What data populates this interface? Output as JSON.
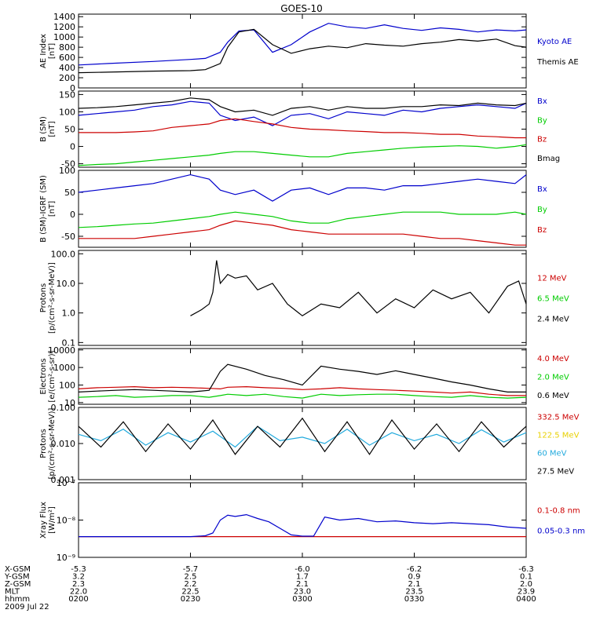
{
  "title": "GOES-10",
  "footer": {
    "row_labels": [
      "X-GSM",
      "Y-GSM",
      "Z-GSM",
      "MLT",
      "hhmm"
    ],
    "date": "2009 Jul 22",
    "ticks": [
      {
        "x_gsm": "-5.3",
        "y_gsm": "3.2",
        "z_gsm": "2.3",
        "mlt": "22.0",
        "hhmm": "0200"
      },
      {
        "x_gsm": "-5.7",
        "y_gsm": "2.5",
        "z_gsm": "2.2",
        "mlt": "22.5",
        "hhmm": "0230"
      },
      {
        "x_gsm": "-6.0",
        "y_gsm": "1.7",
        "z_gsm": "2.1",
        "mlt": "23.0",
        "hhmm": "0300"
      },
      {
        "x_gsm": "-6.2",
        "y_gsm": "0.9",
        "z_gsm": "2.1",
        "mlt": "23.5",
        "hhmm": "0330"
      },
      {
        "x_gsm": "-6.3",
        "y_gsm": "0.1",
        "z_gsm": "2.0",
        "mlt": "23.9",
        "hhmm": "0400"
      }
    ]
  },
  "colors": {
    "blue": "#0000cc",
    "green": "#00cc00",
    "red": "#cc0000",
    "black": "#000000",
    "cyan": "#22aadd",
    "yellow": "#e8d000"
  },
  "chart_data": [
    {
      "type": "line",
      "name": "ae",
      "ylabel": [
        "AE Index",
        "[nT]"
      ],
      "scale": "linear",
      "ylim": [
        0,
        1450
      ],
      "yticks": [
        0,
        200,
        400,
        600,
        800,
        1000,
        1200,
        1400
      ],
      "ytick_labels": [
        "0",
        "200",
        "400",
        "600",
        "800",
        "1000",
        "1200",
        "1400"
      ],
      "x": [
        0,
        8,
        20,
        30,
        34,
        38,
        40,
        43,
        47,
        52,
        57,
        62,
        67,
        72,
        77,
        82,
        87,
        92,
        97,
        102,
        107,
        112,
        117,
        120
      ],
      "series": [
        {
          "name": "Kyoto AE",
          "color": "#0000cc",
          "values": [
            450,
            480,
            520,
            560,
            580,
            700,
            900,
            1120,
            1140,
            700,
            850,
            1100,
            1270,
            1200,
            1170,
            1240,
            1170,
            1130,
            1180,
            1150,
            1100,
            1140,
            1120,
            1140
          ]
        },
        {
          "name": "Themis AE",
          "color": "#000000",
          "values": [
            300,
            310,
            330,
            340,
            360,
            480,
            800,
            1100,
            1150,
            850,
            680,
            770,
            820,
            790,
            870,
            840,
            820,
            870,
            900,
            950,
            920,
            960,
            830,
            800
          ]
        }
      ]
    },
    {
      "type": "line",
      "name": "b-sm",
      "ylabel": [
        "B (SM)",
        "[nT]"
      ],
      "scale": "linear",
      "ylim": [
        -60,
        160
      ],
      "yticks": [
        -50,
        0,
        50,
        100,
        150
      ],
      "ytick_labels": [
        "-50",
        "0",
        "50",
        "100",
        "150"
      ],
      "x": [
        0,
        5,
        10,
        15,
        20,
        25,
        30,
        35,
        38,
        42,
        47,
        52,
        57,
        62,
        67,
        72,
        77,
        82,
        87,
        92,
        97,
        102,
        107,
        112,
        117,
        120
      ],
      "series": [
        {
          "name": "Bx",
          "color": "#0000cc",
          "values": [
            90,
            95,
            100,
            105,
            115,
            120,
            130,
            125,
            90,
            75,
            85,
            60,
            90,
            95,
            80,
            100,
            95,
            90,
            105,
            100,
            110,
            115,
            120,
            115,
            110,
            125
          ]
        },
        {
          "name": "By",
          "color": "#00cc00",
          "values": [
            -55,
            -52,
            -50,
            -45,
            -40,
            -35,
            -30,
            -25,
            -20,
            -15,
            -15,
            -20,
            -25,
            -30,
            -30,
            -20,
            -15,
            -10,
            -5,
            -2,
            0,
            2,
            0,
            -5,
            0,
            5
          ]
        },
        {
          "name": "Bz",
          "color": "#cc0000",
          "values": [
            40,
            40,
            40,
            42,
            45,
            55,
            60,
            65,
            75,
            80,
            72,
            65,
            55,
            50,
            48,
            45,
            43,
            40,
            40,
            38,
            35,
            35,
            30,
            28,
            25,
            25
          ]
        },
        {
          "name": "Bmag",
          "color": "#000000",
          "values": [
            110,
            112,
            115,
            120,
            125,
            130,
            140,
            135,
            115,
            100,
            105,
            90,
            110,
            115,
            105,
            115,
            110,
            110,
            115,
            115,
            120,
            118,
            125,
            120,
            118,
            125
          ]
        }
      ]
    },
    {
      "type": "line",
      "name": "b-igrf",
      "ylabel": [
        "B (SM)-IGRF (SM)",
        "[nT]"
      ],
      "scale": "linear",
      "ylim": [
        -75,
        100
      ],
      "yticks": [
        -50,
        0,
        50,
        100
      ],
      "ytick_labels": [
        "-50",
        "0",
        "50",
        "100"
      ],
      "x": [
        0,
        5,
        10,
        15,
        20,
        25,
        30,
        35,
        38,
        42,
        47,
        52,
        57,
        62,
        67,
        72,
        77,
        82,
        87,
        92,
        97,
        102,
        107,
        112,
        117,
        120
      ],
      "series": [
        {
          "name": "Bx",
          "color": "#0000cc",
          "values": [
            50,
            55,
            60,
            65,
            70,
            80,
            90,
            80,
            55,
            45,
            55,
            30,
            55,
            60,
            45,
            60,
            60,
            55,
            65,
            65,
            70,
            75,
            80,
            75,
            70,
            90
          ]
        },
        {
          "name": "By",
          "color": "#00cc00",
          "values": [
            -30,
            -28,
            -25,
            -22,
            -20,
            -15,
            -10,
            -5,
            0,
            5,
            0,
            -5,
            -15,
            -20,
            -20,
            -10,
            -5,
            0,
            5,
            5,
            5,
            0,
            0,
            0,
            5,
            0
          ]
        },
        {
          "name": "Bz",
          "color": "#cc0000",
          "values": [
            -55,
            -55,
            -55,
            -55,
            -50,
            -45,
            -40,
            -35,
            -25,
            -15,
            -20,
            -25,
            -35,
            -40,
            -45,
            -45,
            -45,
            -45,
            -45,
            -50,
            -55,
            -55,
            -60,
            -65,
            -70,
            -70
          ]
        }
      ]
    },
    {
      "type": "line",
      "name": "protons",
      "ylabel": [
        "Protons",
        "[p/(cm²-s-sr-MeV)]"
      ],
      "scale": "log",
      "ylim": [
        0.08,
        130
      ],
      "yticks": [
        0.1,
        1.0,
        10.0,
        100.0
      ],
      "ytick_labels": [
        "0.1",
        "1.0",
        "10.0",
        "100.0"
      ],
      "x": [
        30,
        33,
        35,
        36,
        37,
        38,
        40,
        42,
        45,
        48,
        52,
        56,
        60,
        65,
        70,
        75,
        80,
        85,
        90,
        95,
        100,
        105,
        110,
        115,
        118,
        120
      ],
      "series": [
        {
          "name": "12 MeV",
          "color": "#cc0000",
          "values": [
            null,
            null,
            null,
            null,
            null,
            null,
            null,
            null,
            null,
            null,
            null,
            null,
            null,
            null,
            null,
            null,
            null,
            null,
            null,
            null,
            null,
            null,
            null,
            null,
            null,
            null
          ]
        },
        {
          "name": "6.5 MeV",
          "color": "#00cc00",
          "values": [
            null,
            null,
            null,
            null,
            null,
            null,
            null,
            null,
            null,
            null,
            null,
            null,
            null,
            null,
            null,
            null,
            null,
            null,
            null,
            null,
            null,
            null,
            null,
            null,
            null,
            null
          ]
        },
        {
          "name": "2.4 MeV",
          "color": "#000000",
          "values": [
            0.8,
            1.3,
            2.0,
            5.0,
            60.0,
            10.0,
            20.0,
            15.0,
            18.0,
            6.0,
            10.0,
            2.0,
            0.8,
            2.0,
            1.5,
            5.0,
            1.0,
            3.0,
            1.5,
            6.0,
            3.0,
            5.0,
            1.0,
            8.0,
            12.0,
            2.0
          ]
        }
      ]
    },
    {
      "type": "line",
      "name": "electrons",
      "ylabel": [
        "Electrons",
        "[e/(cm²-s-sr)]"
      ],
      "scale": "log",
      "ylim": [
        8,
        12000
      ],
      "yticks": [
        10,
        100,
        1000,
        10000
      ],
      "ytick_labels": [
        "10",
        "100",
        "1000",
        "10000"
      ],
      "x": [
        0,
        5,
        10,
        15,
        20,
        25,
        30,
        35,
        38,
        40,
        45,
        50,
        55,
        60,
        65,
        70,
        75,
        80,
        85,
        90,
        95,
        100,
        105,
        110,
        115,
        120
      ],
      "series": [
        {
          "name": "4.0 MeV",
          "color": "#cc0000",
          "values": [
            60,
            70,
            75,
            80,
            70,
            75,
            70,
            65,
            60,
            75,
            80,
            70,
            65,
            55,
            60,
            70,
            60,
            55,
            50,
            45,
            40,
            35,
            40,
            30,
            25,
            25
          ]
        },
        {
          "name": "2.0 MeV",
          "color": "#00cc00",
          "values": [
            20,
            22,
            25,
            20,
            22,
            25,
            25,
            20,
            25,
            30,
            25,
            30,
            22,
            18,
            30,
            25,
            28,
            30,
            30,
            25,
            22,
            20,
            25,
            20,
            18,
            20
          ]
        },
        {
          "name": "0.6 MeV",
          "color": "#000000",
          "values": [
            40,
            45,
            50,
            55,
            50,
            45,
            40,
            50,
            600,
            1500,
            800,
            350,
            200,
            100,
            1200,
            800,
            600,
            400,
            650,
            400,
            250,
            150,
            100,
            60,
            40,
            40
          ]
        }
      ]
    },
    {
      "type": "line",
      "name": "hi-protons",
      "ylabel": [
        "Protons",
        "[p/(cm²-s-sr-MeV)]"
      ],
      "scale": "log",
      "ylim": [
        0.001,
        0.1
      ],
      "yticks": [
        0.001,
        0.01,
        0.1
      ],
      "ytick_labels": [
        "0.001",
        "0.010",
        "0.100"
      ],
      "x": [
        0,
        6,
        12,
        18,
        24,
        30,
        36,
        42,
        48,
        54,
        60,
        66,
        72,
        78,
        84,
        90,
        96,
        102,
        108,
        114,
        120
      ],
      "series": [
        {
          "name": "332.5 MeV",
          "color": "#cc0000",
          "values": [
            null,
            null,
            null,
            null,
            null,
            null,
            null,
            null,
            null,
            null,
            null,
            null,
            null,
            null,
            null,
            null,
            null,
            null,
            null,
            null,
            null
          ]
        },
        {
          "name": "122.5 MeV",
          "color": "#e8d000",
          "values": [
            null,
            null,
            null,
            null,
            null,
            null,
            null,
            null,
            null,
            null,
            null,
            null,
            null,
            null,
            null,
            null,
            null,
            null,
            null,
            null,
            null
          ]
        },
        {
          "name": "60 MeV",
          "color": "#22aadd",
          "values": [
            0.018,
            0.012,
            0.025,
            0.009,
            0.02,
            0.011,
            0.022,
            0.008,
            0.03,
            0.012,
            0.015,
            0.01,
            0.025,
            0.009,
            0.02,
            0.012,
            0.018,
            0.01,
            0.024,
            0.011,
            0.02
          ]
        },
        {
          "name": "27.5 MeV",
          "color": "#000000",
          "values": [
            0.03,
            0.008,
            0.04,
            0.006,
            0.035,
            0.007,
            0.045,
            0.005,
            0.03,
            0.008,
            0.05,
            0.006,
            0.04,
            0.005,
            0.045,
            0.007,
            0.035,
            0.006,
            0.04,
            0.008,
            0.03
          ]
        }
      ]
    },
    {
      "type": "line",
      "name": "xray",
      "ylabel": [
        "Xray Flux",
        "[W/m²]"
      ],
      "scale": "log",
      "ylim": [
        1e-09,
        1e-07
      ],
      "yticks": [
        1e-09,
        1e-08,
        1e-07
      ],
      "ytick_labels": [
        "10⁻⁹",
        "10⁻⁸",
        "10⁻⁷"
      ],
      "x": [
        0,
        30,
        34,
        36,
        38,
        40,
        42,
        45,
        48,
        51,
        54,
        57,
        60,
        63,
        66,
        70,
        75,
        80,
        85,
        90,
        95,
        100,
        105,
        110,
        115,
        120
      ],
      "series": [
        {
          "name": "0.1-0.8 nm",
          "color": "#cc0000",
          "values": [
            3.6e-09,
            3.6e-09,
            3.6e-09,
            3.6e-09,
            3.6e-09,
            3.6e-09,
            3.6e-09,
            3.6e-09,
            3.6e-09,
            3.6e-09,
            3.6e-09,
            3.6e-09,
            3.6e-09,
            3.6e-09,
            3.6e-09,
            3.6e-09,
            3.6e-09,
            3.6e-09,
            3.6e-09,
            3.6e-09,
            3.6e-09,
            3.6e-09,
            3.6e-09,
            3.6e-09,
            3.6e-09,
            3.6e-09
          ]
        },
        {
          "name": "0.05-0.3 nm",
          "color": "#0000cc",
          "values": [
            3.6e-09,
            3.6e-09,
            3.8e-09,
            4.5e-09,
            1e-08,
            1.35e-08,
            1.25e-08,
            1.4e-08,
            1.1e-08,
            9e-09,
            6e-09,
            4e-09,
            3.7e-09,
            3.7e-09,
            1.2e-08,
            1e-08,
            1.1e-08,
            9e-09,
            9.5e-09,
            8.5e-09,
            8e-09,
            8.5e-09,
            8e-09,
            7.5e-09,
            6.5e-09,
            6e-09
          ]
        }
      ]
    }
  ]
}
